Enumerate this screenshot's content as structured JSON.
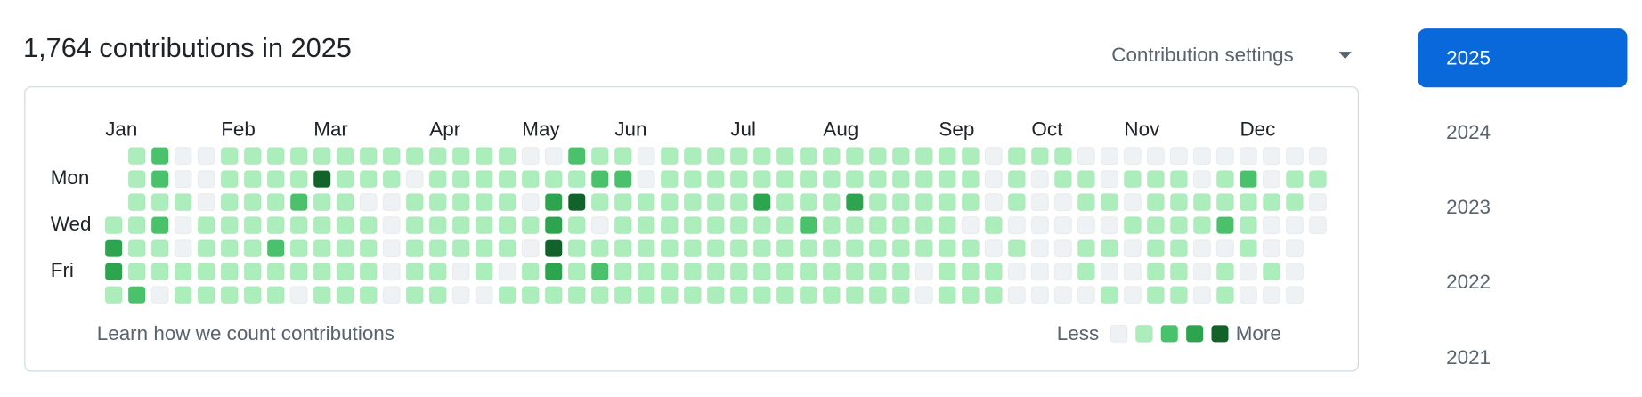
{
  "header": {
    "title": "1,764 contributions in 2025",
    "settings": "Contribution settings"
  },
  "calendar": {
    "months": [
      "Jan",
      "Feb",
      "Mar",
      "Apr",
      "May",
      "Jun",
      "Jul",
      "Aug",
      "Sep",
      "Oct",
      "Nov",
      "Dec"
    ],
    "day_labels": [
      "Mon",
      "Wed",
      "Fri"
    ],
    "level_colors": [
      "#eff2f5",
      "#aceebb",
      "#4ac26b",
      "#2da44e",
      "#116329"
    ],
    "levels": [
      [
        null,
        1,
        2,
        0,
        0,
        1,
        1,
        1,
        1,
        1,
        1,
        1,
        1,
        1,
        1,
        1,
        1,
        1,
        0,
        0,
        2,
        1,
        1,
        0,
        1,
        1,
        1,
        1,
        1,
        1,
        1,
        1,
        1,
        1,
        1,
        1,
        1,
        1,
        0,
        1,
        1,
        1,
        0,
        0,
        0,
        0,
        0,
        0,
        0,
        0,
        0,
        0,
        0
      ],
      [
        null,
        1,
        2,
        0,
        0,
        1,
        1,
        1,
        1,
        4,
        1,
        1,
        1,
        0,
        1,
        1,
        1,
        1,
        1,
        1,
        1,
        2,
        2,
        0,
        1,
        1,
        1,
        1,
        1,
        1,
        1,
        1,
        1,
        1,
        1,
        1,
        1,
        1,
        0,
        1,
        0,
        1,
        1,
        0,
        1,
        1,
        1,
        0,
        1,
        2,
        0,
        1,
        1
      ],
      [
        null,
        1,
        1,
        1,
        0,
        1,
        1,
        1,
        2,
        1,
        1,
        0,
        0,
        1,
        1,
        1,
        1,
        1,
        0,
        3,
        4,
        1,
        1,
        1,
        1,
        1,
        1,
        1,
        3,
        1,
        1,
        1,
        3,
        1,
        1,
        1,
        1,
        1,
        0,
        1,
        0,
        0,
        1,
        1,
        0,
        1,
        1,
        1,
        1,
        1,
        1,
        1,
        0
      ],
      [
        1,
        1,
        2,
        0,
        1,
        1,
        1,
        1,
        1,
        1,
        1,
        1,
        0,
        1,
        1,
        1,
        1,
        1,
        1,
        3,
        1,
        0,
        1,
        1,
        1,
        1,
        1,
        1,
        1,
        1,
        2,
        1,
        1,
        1,
        1,
        1,
        1,
        0,
        1,
        0,
        0,
        0,
        0,
        0,
        1,
        1,
        1,
        1,
        2,
        1,
        0,
        0,
        0
      ],
      [
        3,
        1,
        1,
        0,
        1,
        1,
        1,
        2,
        1,
        1,
        1,
        1,
        0,
        1,
        1,
        1,
        1,
        1,
        0,
        4,
        1,
        1,
        1,
        1,
        1,
        1,
        1,
        1,
        1,
        1,
        1,
        1,
        1,
        1,
        1,
        1,
        1,
        1,
        0,
        1,
        0,
        0,
        1,
        1,
        0,
        1,
        1,
        0,
        0,
        1,
        0,
        0,
        null
      ],
      [
        3,
        1,
        1,
        1,
        1,
        1,
        1,
        1,
        1,
        1,
        1,
        1,
        0,
        1,
        1,
        0,
        1,
        0,
        1,
        3,
        1,
        2,
        1,
        1,
        1,
        1,
        1,
        1,
        1,
        1,
        1,
        1,
        1,
        1,
        1,
        0,
        1,
        1,
        1,
        0,
        0,
        0,
        1,
        0,
        0,
        1,
        1,
        0,
        1,
        0,
        1,
        0,
        null
      ],
      [
        1,
        2,
        0,
        1,
        1,
        1,
        1,
        1,
        0,
        1,
        1,
        1,
        0,
        1,
        1,
        0,
        0,
        1,
        1,
        1,
        1,
        1,
        1,
        1,
        1,
        1,
        1,
        1,
        1,
        1,
        1,
        1,
        1,
        1,
        1,
        0,
        1,
        1,
        1,
        0,
        0,
        0,
        0,
        1,
        0,
        1,
        1,
        0,
        1,
        0,
        0,
        0,
        null
      ]
    ],
    "learn_link": "Learn how we count contributions",
    "legend_less": "Less",
    "legend_more": "More"
  },
  "years": [
    "2025",
    "2024",
    "2023",
    "2022",
    "2021"
  ]
}
